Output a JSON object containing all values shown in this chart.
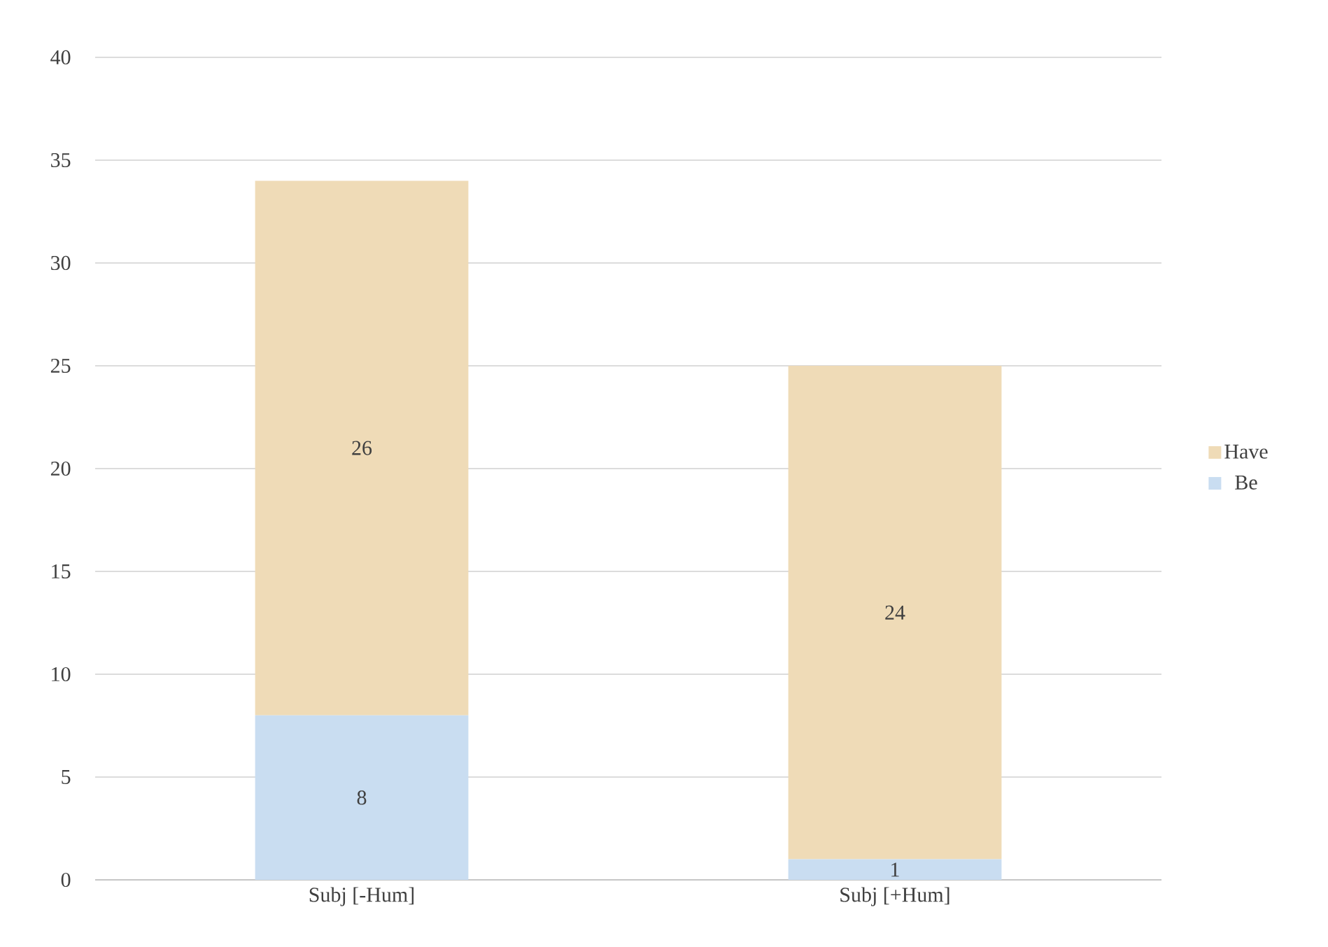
{
  "chart_data": {
    "type": "bar",
    "stacked": true,
    "categories": [
      "Subj [-Hum]",
      "Subj [+Hum]"
    ],
    "series": [
      {
        "name": "Be",
        "color": "#c9ddf1",
        "values": [
          8,
          1
        ]
      },
      {
        "name": "Have",
        "color": "#efdbb7",
        "values": [
          26,
          24
        ]
      }
    ],
    "ylim": [
      0,
      40
    ],
    "yticks": [
      0,
      5,
      10,
      15,
      20,
      25,
      30,
      35,
      40
    ],
    "grid": "y",
    "legend": "right",
    "data_labels": true
  }
}
